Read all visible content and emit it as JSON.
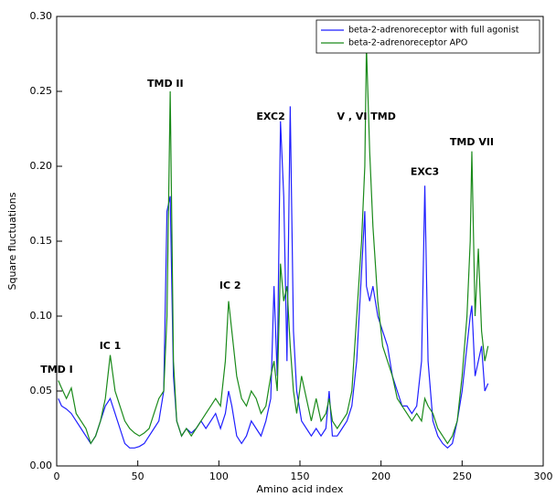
{
  "chart_data": {
    "type": "line",
    "x_label": "Amino acid index",
    "y_label": "Square fluctuations",
    "xlim": [
      0,
      300
    ],
    "ylim": [
      0,
      0.3
    ],
    "xticks": [
      0,
      50,
      100,
      150,
      200,
      250,
      300
    ],
    "yticks": [
      {
        "value": 0,
        "label": "0.00"
      },
      {
        "value": 0.05,
        "label": "0.05"
      },
      {
        "value": 0.1,
        "label": "0.10"
      },
      {
        "value": 0.15,
        "label": "0.15"
      },
      {
        "value": 0.2,
        "label": "0.20"
      },
      {
        "value": 0.25,
        "label": "0.25"
      },
      {
        "value": 0.3,
        "label": "0.30"
      }
    ],
    "legend": "upper right",
    "x": [
      1,
      3,
      6,
      9,
      12,
      15,
      18,
      21,
      24,
      27,
      30,
      33,
      36,
      39,
      42,
      45,
      48,
      51,
      54,
      57,
      60,
      63,
      66,
      68,
      70,
      72,
      74,
      77,
      80,
      83,
      86,
      89,
      92,
      95,
      98,
      101,
      104,
      106,
      108,
      111,
      114,
      117,
      120,
      123,
      126,
      129,
      132,
      134,
      136,
      138,
      140,
      142,
      144,
      146,
      148,
      151,
      154,
      157,
      160,
      163,
      166,
      168,
      170,
      173,
      176,
      179,
      182,
      185,
      188,
      190,
      191,
      193,
      195,
      198,
      201,
      204,
      207,
      210,
      213,
      216,
      219,
      222,
      225,
      227,
      229,
      232,
      235,
      238,
      241,
      244,
      247,
      250,
      253,
      255,
      256,
      258,
      260,
      262,
      264,
      266
    ],
    "series": [
      {
        "name": "beta-2-adrenoreceptor with full agonist",
        "color": "#1f1fff",
        "values": [
          0.045,
          0.04,
          0.038,
          0.035,
          0.03,
          0.025,
          0.02,
          0.015,
          0.02,
          0.03,
          0.04,
          0.045,
          0.035,
          0.025,
          0.015,
          0.012,
          0.012,
          0.013,
          0.015,
          0.02,
          0.025,
          0.03,
          0.05,
          0.17,
          0.18,
          0.06,
          0.03,
          0.02,
          0.025,
          0.022,
          0.025,
          0.03,
          0.025,
          0.03,
          0.035,
          0.025,
          0.035,
          0.05,
          0.04,
          0.02,
          0.015,
          0.02,
          0.03,
          0.025,
          0.02,
          0.03,
          0.045,
          0.12,
          0.06,
          0.23,
          0.18,
          0.07,
          0.24,
          0.09,
          0.05,
          0.03,
          0.025,
          0.02,
          0.025,
          0.02,
          0.025,
          0.05,
          0.02,
          0.02,
          0.025,
          0.03,
          0.04,
          0.07,
          0.13,
          0.17,
          0.12,
          0.11,
          0.12,
          0.1,
          0.09,
          0.08,
          0.06,
          0.05,
          0.04,
          0.04,
          0.035,
          0.04,
          0.07,
          0.187,
          0.07,
          0.03,
          0.02,
          0.015,
          0.012,
          0.015,
          0.03,
          0.05,
          0.08,
          0.1,
          0.107,
          0.06,
          0.07,
          0.08,
          0.05,
          0.055
        ]
      },
      {
        "name": "beta-2-adrenoreceptor APO",
        "color": "#1a8a1a",
        "values": [
          0.057,
          0.052,
          0.045,
          0.052,
          0.035,
          0.03,
          0.025,
          0.015,
          0.02,
          0.03,
          0.045,
          0.074,
          0.05,
          0.04,
          0.03,
          0.025,
          0.022,
          0.02,
          0.022,
          0.025,
          0.035,
          0.045,
          0.05,
          0.1,
          0.25,
          0.07,
          0.03,
          0.02,
          0.025,
          0.02,
          0.025,
          0.03,
          0.035,
          0.04,
          0.045,
          0.04,
          0.07,
          0.11,
          0.09,
          0.06,
          0.045,
          0.04,
          0.05,
          0.045,
          0.035,
          0.04,
          0.06,
          0.07,
          0.05,
          0.135,
          0.11,
          0.12,
          0.08,
          0.05,
          0.035,
          0.06,
          0.045,
          0.03,
          0.045,
          0.03,
          0.035,
          0.045,
          0.03,
          0.025,
          0.03,
          0.035,
          0.05,
          0.1,
          0.15,
          0.2,
          0.28,
          0.21,
          0.16,
          0.11,
          0.08,
          0.07,
          0.06,
          0.045,
          0.04,
          0.035,
          0.03,
          0.035,
          0.03,
          0.045,
          0.04,
          0.035,
          0.025,
          0.02,
          0.015,
          0.02,
          0.03,
          0.06,
          0.1,
          0.15,
          0.21,
          0.1,
          0.145,
          0.09,
          0.07,
          0.08
        ]
      }
    ],
    "annotations": [
      {
        "text": "TMD I",
        "x": 0,
        "y": 0.064
      },
      {
        "text": "IC 1",
        "x": 33,
        "y": 0.08
      },
      {
        "text": "TMD II",
        "x": 67,
        "y": 0.255
      },
      {
        "text": "IC 2",
        "x": 107,
        "y": 0.12
      },
      {
        "text": "EXC2",
        "x": 132,
        "y": 0.233
      },
      {
        "text": "V , VI TMD",
        "x": 191,
        "y": 0.233
      },
      {
        "text": "EXC3",
        "x": 227,
        "y": 0.196
      },
      {
        "text": "TMD VII",
        "x": 256,
        "y": 0.216
      }
    ]
  }
}
